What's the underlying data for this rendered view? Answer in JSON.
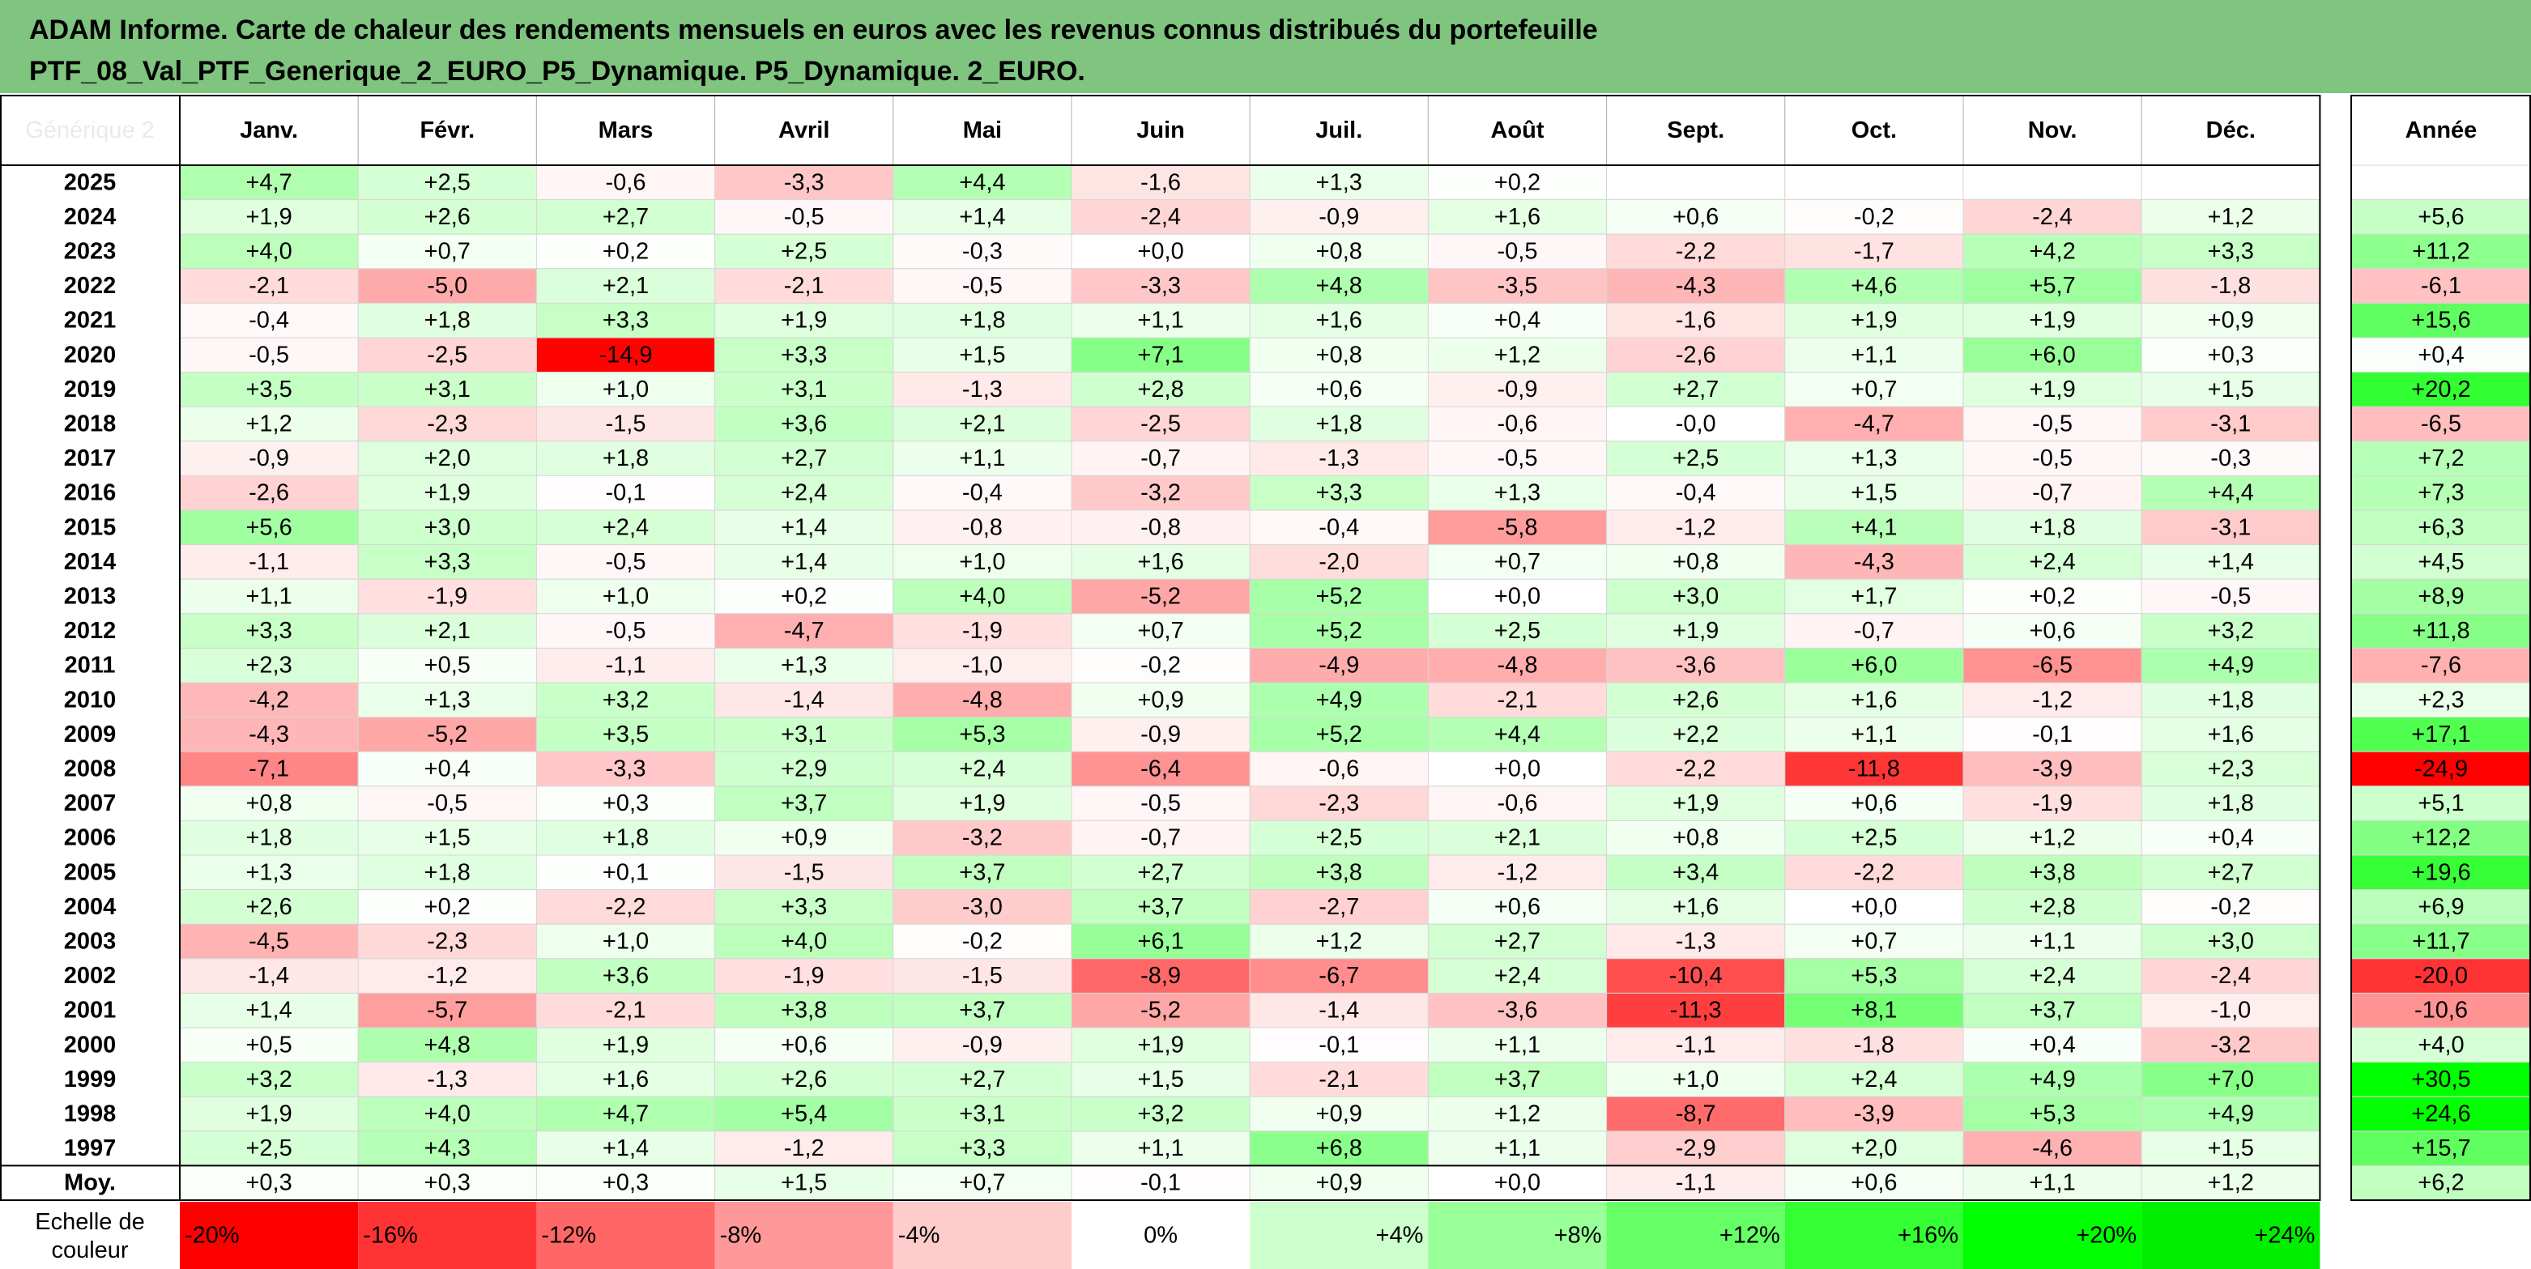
{
  "title_lines": [
    "ADAM Informe. Carte de chaleur des rendements mensuels en euros avec les revenus connus distribués du portefeuille",
    "PTF_08_Val_PTF_Generique_2_EURO_P5_Dynamique. P5_Dynamique. 2_EURO."
  ],
  "chart_data": {
    "type": "heatmap",
    "corner_label": "Générique 2",
    "columns": [
      "Janv.",
      "Févr.",
      "Mars",
      "Avril",
      "Mai",
      "Juin",
      "Juil.",
      "Août",
      "Sept.",
      "Oct.",
      "Nov.",
      "Déc."
    ],
    "year_column": "Année",
    "rows": [
      {
        "label": "2025",
        "values": [
          4.7,
          2.5,
          -0.6,
          -3.3,
          4.4,
          -1.6,
          1.3,
          0.2,
          null,
          null,
          null,
          null
        ],
        "year": null
      },
      {
        "label": "2024",
        "values": [
          1.9,
          2.6,
          2.7,
          -0.5,
          1.4,
          -2.4,
          -0.9,
          1.6,
          0.6,
          -0.2,
          -2.4,
          1.2
        ],
        "year": 5.6
      },
      {
        "label": "2023",
        "values": [
          4.0,
          0.7,
          0.2,
          2.5,
          -0.3,
          0.0,
          0.8,
          -0.5,
          -2.2,
          -1.7,
          4.2,
          3.3
        ],
        "year": 11.2
      },
      {
        "label": "2022",
        "values": [
          -2.1,
          -5.0,
          2.1,
          -2.1,
          -0.5,
          -3.3,
          4.8,
          -3.5,
          -4.3,
          4.6,
          5.7,
          -1.8
        ],
        "year": -6.1
      },
      {
        "label": "2021",
        "values": [
          -0.4,
          1.8,
          3.3,
          1.9,
          1.8,
          1.1,
          1.6,
          0.4,
          -1.6,
          1.9,
          1.9,
          0.9
        ],
        "year": 15.6
      },
      {
        "label": "2020",
        "values": [
          -0.5,
          -2.5,
          -14.9,
          3.3,
          1.5,
          7.1,
          0.8,
          1.2,
          -2.6,
          1.1,
          6.0,
          0.3
        ],
        "year": 0.4
      },
      {
        "label": "2019",
        "values": [
          3.5,
          3.1,
          1.0,
          3.1,
          -1.3,
          2.8,
          0.6,
          -0.9,
          2.7,
          0.7,
          1.9,
          1.5
        ],
        "year": 20.2
      },
      {
        "label": "2018",
        "values": [
          1.2,
          -2.3,
          -1.5,
          3.6,
          2.1,
          -2.5,
          1.8,
          -0.6,
          "-0,0",
          -4.7,
          -0.5,
          -3.1
        ],
        "year": -6.5
      },
      {
        "label": "2017",
        "values": [
          -0.9,
          2.0,
          1.8,
          2.7,
          1.1,
          -0.7,
          -1.3,
          -0.5,
          2.5,
          1.3,
          -0.5,
          -0.3
        ],
        "year": 7.2
      },
      {
        "label": "2016",
        "values": [
          -2.6,
          1.9,
          -0.1,
          2.4,
          -0.4,
          -3.2,
          3.3,
          1.3,
          -0.4,
          1.5,
          -0.7,
          4.4
        ],
        "year": 7.3
      },
      {
        "label": "2015",
        "values": [
          5.6,
          3.0,
          2.4,
          1.4,
          -0.8,
          -0.8,
          -0.4,
          -5.8,
          -1.2,
          4.1,
          1.8,
          -3.1
        ],
        "year": 6.3
      },
      {
        "label": "2014",
        "values": [
          -1.1,
          3.3,
          -0.5,
          1.4,
          1.0,
          1.6,
          -2.0,
          0.7,
          0.8,
          -4.3,
          2.4,
          1.4
        ],
        "year": 4.5
      },
      {
        "label": "2013",
        "values": [
          1.1,
          -1.9,
          1.0,
          0.2,
          4.0,
          -5.2,
          5.2,
          0.0,
          3.0,
          1.7,
          0.2,
          -0.5
        ],
        "year": 8.9
      },
      {
        "label": "2012",
        "values": [
          3.3,
          2.1,
          -0.5,
          -4.7,
          -1.9,
          0.7,
          5.2,
          2.5,
          1.9,
          -0.7,
          0.6,
          3.2
        ],
        "year": 11.8
      },
      {
        "label": "2011",
        "values": [
          2.3,
          0.5,
          -1.1,
          1.3,
          -1.0,
          -0.2,
          -4.9,
          -4.8,
          -3.6,
          6.0,
          -6.5,
          4.9
        ],
        "year": -7.6
      },
      {
        "label": "2010",
        "values": [
          -4.2,
          1.3,
          3.2,
          -1.4,
          -4.8,
          0.9,
          4.9,
          -2.1,
          2.6,
          1.6,
          -1.2,
          1.8
        ],
        "year": 2.3
      },
      {
        "label": "2009",
        "values": [
          -4.3,
          -5.2,
          3.5,
          3.1,
          5.3,
          -0.9,
          5.2,
          4.4,
          2.2,
          1.1,
          -0.1,
          1.6
        ],
        "year": 17.1
      },
      {
        "label": "2008",
        "values": [
          -7.1,
          0.4,
          -3.3,
          2.9,
          2.4,
          -6.4,
          -0.6,
          0.0,
          -2.2,
          -11.8,
          -3.9,
          2.3
        ],
        "year": -24.9
      },
      {
        "label": "2007",
        "values": [
          0.8,
          -0.5,
          0.3,
          3.7,
          1.9,
          -0.5,
          -2.3,
          -0.6,
          1.9,
          0.6,
          -1.9,
          1.8
        ],
        "year": 5.1
      },
      {
        "label": "2006",
        "values": [
          1.8,
          1.5,
          1.8,
          0.9,
          -3.2,
          -0.7,
          2.5,
          2.1,
          0.8,
          2.5,
          1.2,
          0.4
        ],
        "year": 12.2
      },
      {
        "label": "2005",
        "values": [
          1.3,
          1.8,
          0.1,
          -1.5,
          3.7,
          2.7,
          3.8,
          -1.2,
          3.4,
          -2.2,
          3.8,
          2.7
        ],
        "year": 19.6
      },
      {
        "label": "2004",
        "values": [
          2.6,
          0.2,
          -2.2,
          3.3,
          -3.0,
          3.7,
          -2.7,
          0.6,
          1.6,
          0.0,
          2.8,
          -0.2
        ],
        "year": 6.9
      },
      {
        "label": "2003",
        "values": [
          -4.5,
          -2.3,
          1.0,
          4.0,
          -0.2,
          6.1,
          1.2,
          2.7,
          -1.3,
          0.7,
          1.1,
          3.0
        ],
        "year": 11.7
      },
      {
        "label": "2002",
        "values": [
          -1.4,
          -1.2,
          3.6,
          -1.9,
          -1.5,
          -8.9,
          -6.7,
          2.4,
          -10.4,
          5.3,
          2.4,
          -2.4
        ],
        "year": -20.0
      },
      {
        "label": "2001",
        "values": [
          1.4,
          -5.7,
          -2.1,
          3.8,
          3.7,
          -5.2,
          -1.4,
          -3.6,
          -11.3,
          8.1,
          3.7,
          -1.0
        ],
        "year": -10.6
      },
      {
        "label": "2000",
        "values": [
          0.5,
          4.8,
          1.9,
          0.6,
          -0.9,
          1.9,
          -0.1,
          1.1,
          -1.1,
          -1.8,
          0.4,
          -3.2
        ],
        "year": 4.0
      },
      {
        "label": "1999",
        "values": [
          3.2,
          -1.3,
          1.6,
          2.6,
          2.7,
          1.5,
          -2.1,
          3.7,
          1.0,
          2.4,
          4.9,
          7.0
        ],
        "year": 30.5
      },
      {
        "label": "1998",
        "values": [
          1.9,
          4.0,
          4.7,
          5.4,
          3.1,
          3.2,
          0.9,
          1.2,
          -8.7,
          -3.9,
          5.3,
          4.9
        ],
        "year": 24.6
      },
      {
        "label": "1997",
        "values": [
          2.5,
          4.3,
          1.4,
          -1.2,
          3.3,
          1.1,
          6.8,
          1.1,
          -2.9,
          2.0,
          -4.6,
          1.5
        ],
        "year": 15.7
      }
    ],
    "average": {
      "label": "Moy.",
      "values": [
        0.3,
        0.3,
        0.3,
        1.5,
        0.7,
        -0.1,
        0.9,
        0.0,
        -1.1,
        0.6,
        1.1,
        1.2
      ],
      "year": 6.2
    },
    "scale": {
      "label_lines": [
        "Echelle de",
        "couleur"
      ],
      "stops": [
        {
          "label": "-20%",
          "color": "#ff0000"
        },
        {
          "label": "-16%",
          "color": "#ff3333"
        },
        {
          "label": "-12%",
          "color": "#ff6666"
        },
        {
          "label": "-8%",
          "color": "#ff9999"
        },
        {
          "label": "-4%",
          "color": "#ffcccc"
        },
        {
          "label": "0%",
          "color": "#ffffff"
        },
        {
          "label": "+4%",
          "color": "#ccffcc"
        },
        {
          "label": "+8%",
          "color": "#99ff99"
        },
        {
          "label": "+12%",
          "color": "#66ff66"
        },
        {
          "label": "+16%",
          "color": "#33ff33"
        },
        {
          "label": "+20%",
          "color": "#00ff00"
        },
        {
          "label": "+24%",
          "color": "#00ee00"
        }
      ]
    },
    "colors": {
      "negative_max": "#ff0000",
      "neutral": "#ffffff",
      "positive_max": "#00ff00",
      "title_band": "#7fc47f"
    }
  }
}
